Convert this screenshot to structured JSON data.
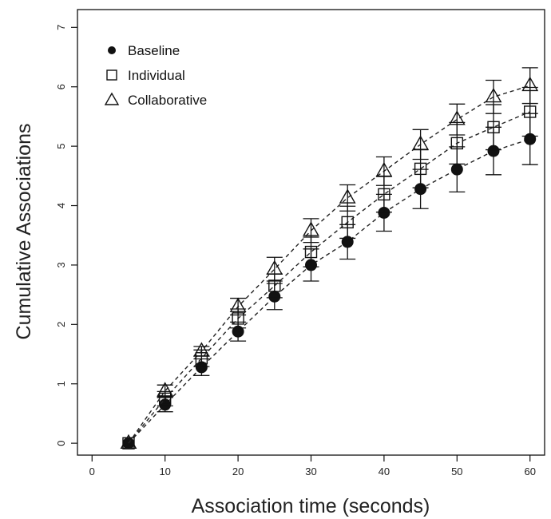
{
  "chart_data": {
    "type": "line",
    "title": "",
    "xlabel": "Association time (seconds)",
    "ylabel": "Cumulative Associations",
    "xlim": [
      -2,
      62
    ],
    "ylim": [
      -0.2,
      7.3
    ],
    "x_ticks": [
      0,
      10,
      20,
      30,
      40,
      50,
      60
    ],
    "y_ticks": [
      0,
      1,
      2,
      3,
      4,
      5,
      6,
      7
    ],
    "grid": false,
    "legend_position": "top-left",
    "line_style": "dashed",
    "line_color": "#222222",
    "x": [
      5,
      10,
      15,
      20,
      25,
      30,
      35,
      40,
      45,
      50,
      55,
      60
    ],
    "series": [
      {
        "name": "Baseline",
        "marker": "filled-circle",
        "values": [
          0,
          0.65,
          1.28,
          1.88,
          2.47,
          3.0,
          3.39,
          3.88,
          4.28,
          4.61,
          4.92,
          5.12
        ],
        "error": [
          0.03,
          0.12,
          0.14,
          0.16,
          0.22,
          0.27,
          0.29,
          0.31,
          0.33,
          0.38,
          0.4,
          0.43
        ]
      },
      {
        "name": "Individual",
        "marker": "open-square",
        "values": [
          0,
          0.75,
          1.43,
          2.1,
          2.65,
          3.22,
          3.72,
          4.19,
          4.62,
          5.05,
          5.32,
          5.58
        ],
        "error": [
          0.03,
          0.12,
          0.14,
          0.16,
          0.2,
          0.25,
          0.27,
          0.3,
          0.32,
          0.35,
          0.38,
          0.41
        ]
      },
      {
        "name": "Collaborative",
        "marker": "open-triangle",
        "values": [
          0,
          0.88,
          1.55,
          2.3,
          2.93,
          3.58,
          4.13,
          4.58,
          5.03,
          5.45,
          5.83,
          6.02
        ],
        "error": [
          0.03,
          0.1,
          0.08,
          0.14,
          0.2,
          0.2,
          0.22,
          0.24,
          0.25,
          0.26,
          0.28,
          0.3
        ]
      }
    ]
  }
}
